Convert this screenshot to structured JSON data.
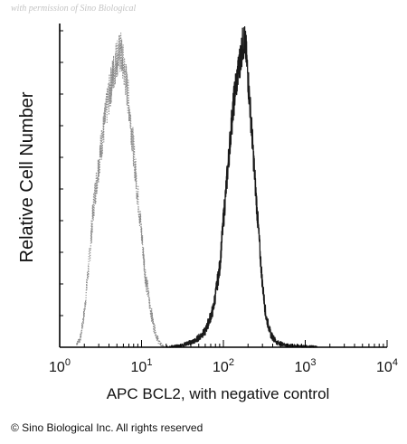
{
  "watermark": "with permission of Sino Biological",
  "copyright": "© Sino Biological Inc. All rights reserved",
  "colors": {
    "stained": "#1a1a1a",
    "control": "#8a8a8a",
    "axis": "#000000"
  },
  "chart_data": {
    "type": "area",
    "xlabel": "APC BCL2, with negative control",
    "ylabel": "Relative Cell Number",
    "x_scale": "log",
    "xlim": [
      1,
      10000
    ],
    "ylim": [
      0,
      1
    ],
    "x_ticks": [
      {
        "value": 1,
        "base": "10",
        "exp": "0"
      },
      {
        "value": 10,
        "base": "10",
        "exp": "1"
      },
      {
        "value": 100,
        "base": "10",
        "exp": "2"
      },
      {
        "value": 1000,
        "base": "10",
        "exp": "3"
      },
      {
        "value": 10000,
        "base": "10",
        "exp": "4"
      }
    ],
    "grid": false,
    "series": [
      {
        "style": "dotted",
        "x": [
          1.6,
          1.8,
          2.0,
          2.3,
          2.6,
          3.0,
          3.4,
          3.9,
          4.4,
          5.0,
          5.6,
          6.3,
          7.1,
          8.0,
          9.0,
          10.0,
          11.0,
          12.5,
          14.0,
          15.5,
          17.0,
          19.0
        ],
        "y": [
          0.01,
          0.03,
          0.11,
          0.28,
          0.45,
          0.58,
          0.68,
          0.78,
          0.85,
          0.92,
          0.93,
          0.86,
          0.76,
          0.62,
          0.48,
          0.36,
          0.24,
          0.14,
          0.07,
          0.03,
          0.01,
          0.0
        ]
      },
      {
        "style": "solid",
        "x": [
          20,
          30,
          45,
          60,
          75,
          90,
          100,
          112,
          125,
          140,
          150,
          160,
          170,
          180,
          190,
          200,
          220,
          240,
          260,
          280,
          300,
          330,
          380,
          450,
          600,
          800,
          1100,
          1400
        ],
        "y": [
          0.0,
          0.005,
          0.02,
          0.05,
          0.12,
          0.25,
          0.4,
          0.55,
          0.7,
          0.82,
          0.86,
          0.91,
          0.95,
          0.97,
          0.93,
          0.85,
          0.7,
          0.55,
          0.42,
          0.3,
          0.2,
          0.1,
          0.04,
          0.015,
          0.006,
          0.004,
          0.002,
          0.0
        ]
      }
    ]
  }
}
